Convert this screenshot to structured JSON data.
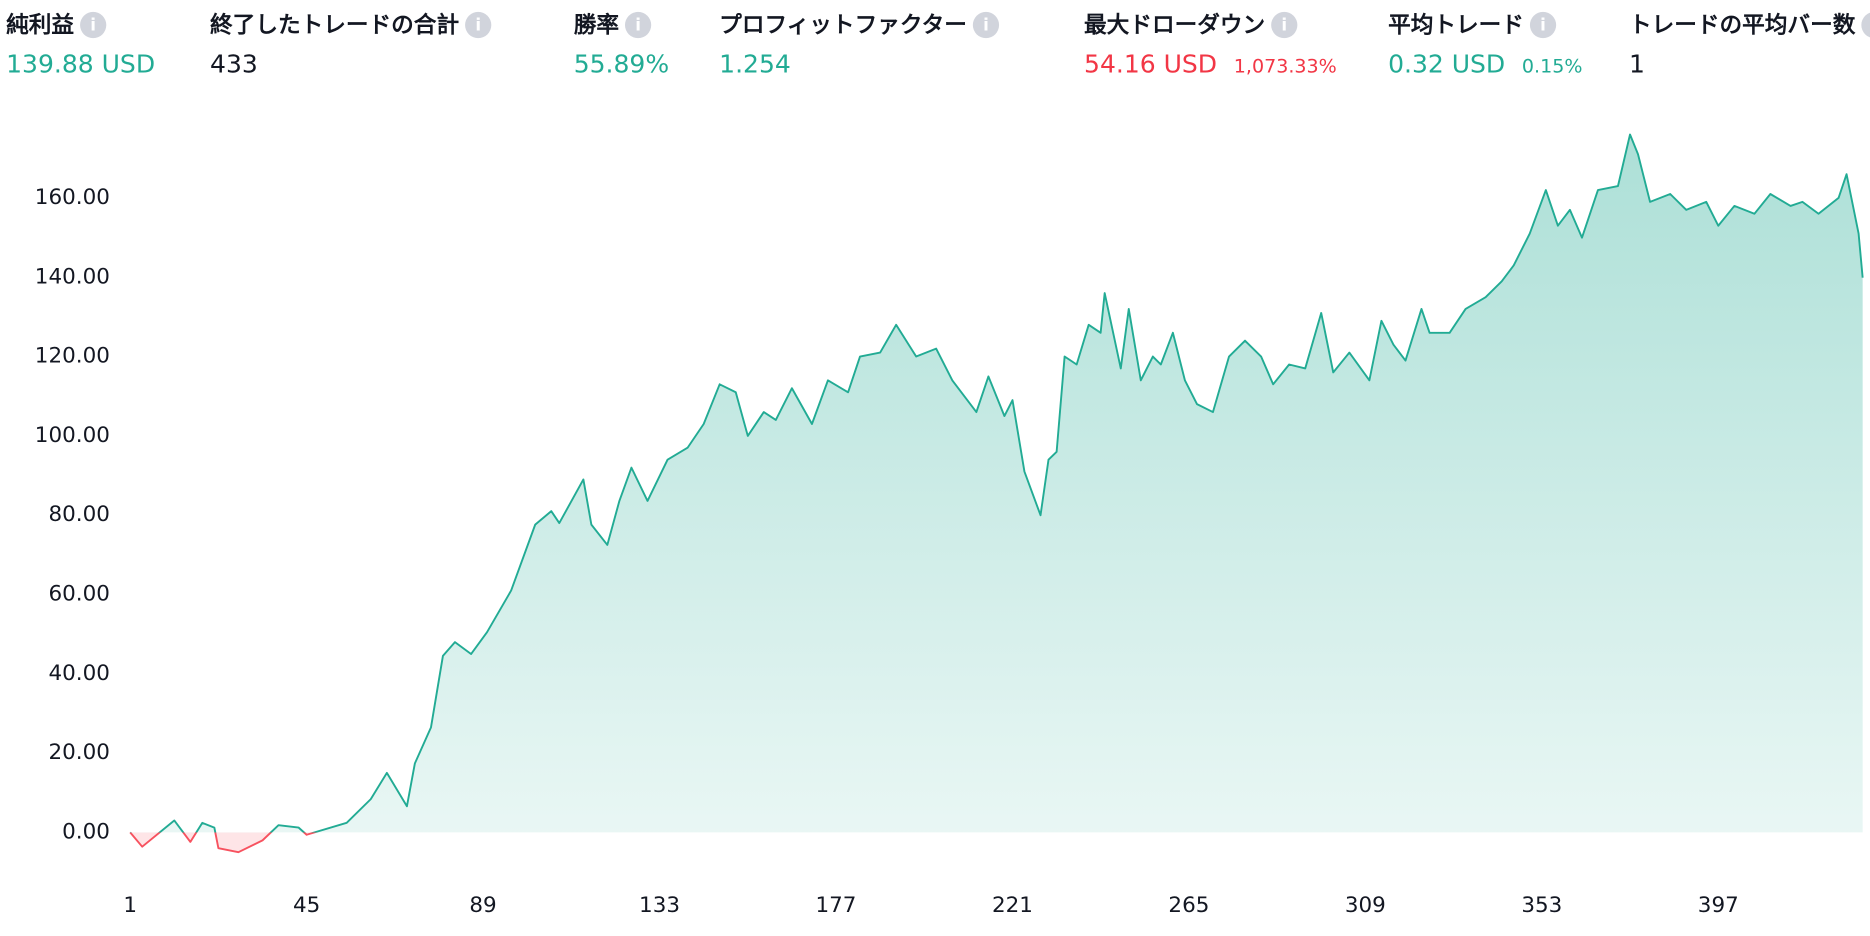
{
  "stats": [
    {
      "label": "純利益",
      "value": "139.88 USD",
      "color": "#22ab94"
    },
    {
      "label": "終了したトレードの合計",
      "value": "433",
      "color": "#131722"
    },
    {
      "label": "勝率",
      "value": "55.89%",
      "color": "#22ab94"
    },
    {
      "label": "プロフィットファクター",
      "value": "1.254",
      "color": "#22ab94"
    },
    {
      "label": "最大ドローダウン",
      "value": "54.16 USD",
      "percent": "1,073.33%",
      "color": "#f23645"
    },
    {
      "label": "平均トレード",
      "value": "0.32 USD",
      "percent": "0.15%",
      "color": "#22ab94"
    },
    {
      "label": "トレードの平均バー数",
      "value": "1",
      "color": "#131722"
    }
  ],
  "chart_data": {
    "type": "area",
    "x": [
      1,
      4,
      12,
      16,
      19,
      22,
      23,
      28,
      34,
      38,
      43,
      45,
      55,
      61,
      65,
      70,
      72,
      76,
      79,
      82,
      86,
      90,
      96,
      102,
      106,
      108,
      114,
      116,
      120,
      123,
      126,
      130,
      135,
      140,
      144,
      148,
      152,
      155,
      159,
      162,
      166,
      171,
      175,
      180,
      183,
      188,
      192,
      197,
      202,
      206,
      212,
      215,
      219,
      221,
      224,
      228,
      230,
      232,
      234,
      237,
      240,
      243,
      244,
      248,
      250,
      253,
      256,
      258,
      261,
      264,
      267,
      271,
      275,
      279,
      283,
      286,
      290,
      294,
      298,
      301,
      305,
      310,
      313,
      316,
      319,
      323,
      325,
      330,
      334,
      339,
      343,
      346,
      350,
      354,
      357,
      360,
      363,
      367,
      372,
      375,
      377,
      380,
      385,
      389,
      394,
      397,
      401,
      406,
      410,
      415,
      418,
      422,
      427,
      429,
      432,
      433
    ],
    "series": [
      {
        "color": "#22ab94",
        "negative_color": "#f7525f",
        "values": [
          0,
          -3.6,
          3,
          -2.4,
          2.4,
          1.2,
          -4,
          -5,
          -2,
          1.8,
          1.2,
          -0.6,
          2.4,
          8.4,
          15,
          6.6,
          17.4,
          26.5,
          44.5,
          48,
          45,
          50.5,
          61,
          77.6,
          81,
          78,
          89,
          77.6,
          72.5,
          83.6,
          92,
          83.6,
          94,
          97,
          103,
          113,
          111,
          100,
          106,
          104,
          112,
          103,
          114,
          111,
          120,
          121,
          128,
          120,
          122,
          114,
          106,
          115,
          105,
          109,
          91,
          80,
          94,
          96,
          120,
          118,
          128,
          126,
          136,
          117,
          132,
          114,
          120,
          118,
          126,
          114,
          108,
          106,
          120,
          124,
          120,
          113,
          118,
          117,
          131,
          116,
          121,
          114,
          129,
          123,
          119,
          132,
          126,
          126,
          132,
          135,
          139,
          143,
          151,
          162,
          153,
          157,
          150,
          162,
          163,
          176,
          171,
          159,
          161,
          157,
          159,
          153,
          158,
          156,
          161,
          158,
          159,
          156,
          160,
          166,
          151,
          139.88
        ]
      }
    ],
    "xlim": [
      1,
      433
    ],
    "xticks": [
      1,
      45,
      89,
      133,
      177,
      221,
      265,
      309,
      353,
      397
    ],
    "ylim": [
      -15,
      180
    ],
    "yticks": [
      {
        "value": 0,
        "label": "0.00"
      },
      {
        "value": 20,
        "label": "20.00"
      },
      {
        "value": 40,
        "label": "40.00"
      },
      {
        "value": 60,
        "label": "60.00"
      },
      {
        "value": 80,
        "label": "80.00"
      },
      {
        "value": 100,
        "label": "100.00"
      },
      {
        "value": 120,
        "label": "120.00"
      },
      {
        "value": 140,
        "label": "140.00"
      },
      {
        "value": 160,
        "label": "160.00"
      }
    ]
  }
}
